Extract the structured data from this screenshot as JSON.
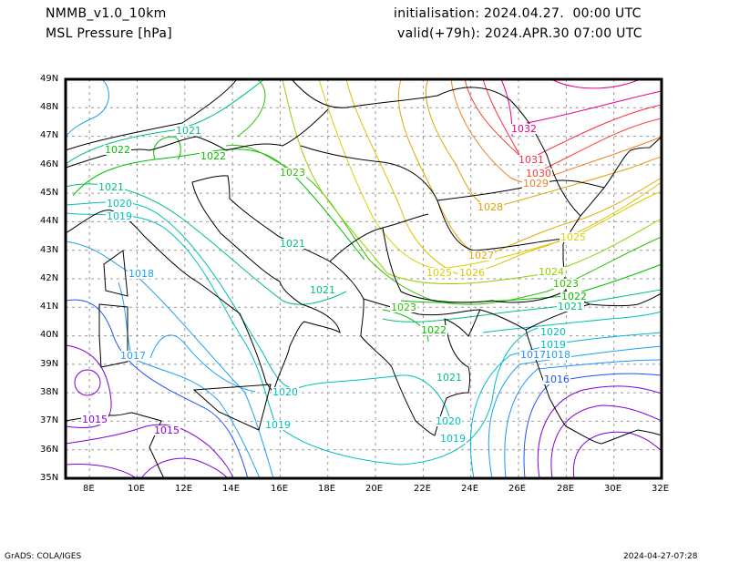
{
  "header": {
    "model": "NMMB_v1.0_10km",
    "field": "MSL Pressure [hPa]",
    "initialisation": "initialisation: 2024.04.27.  00:00 UTC",
    "valid": "valid(+79h): 2024.APR.30 07:00 UTC"
  },
  "footer": {
    "credit": "GrADS: COLA/IGES",
    "timestamp": "2024-04-27-07:28"
  },
  "axes": {
    "lat_labels": [
      "49N",
      "48N",
      "47N",
      "46N",
      "45N",
      "44N",
      "43N",
      "42N",
      "41N",
      "40N",
      "39N",
      "38N",
      "37N",
      "36N",
      "35N"
    ],
    "lon_labels": [
      "8E",
      "10E",
      "12E",
      "14E",
      "16E",
      "18E",
      "20E",
      "22E",
      "24E",
      "26E",
      "28E",
      "30E",
      "32E"
    ],
    "lat_range": [
      35,
      49
    ],
    "lon_range": [
      7,
      32
    ]
  },
  "contour_labels": [
    {
      "text": "1032",
      "color": "#e8008c"
    },
    {
      "text": "1031",
      "color": "#ff2840"
    },
    {
      "text": "1030",
      "color": "#ff4030"
    },
    {
      "text": "1029",
      "color": "#f08020"
    },
    {
      "text": "1028",
      "color": "#e0a000"
    },
    {
      "text": "1027",
      "color": "#e0a800"
    },
    {
      "text": "1026",
      "color": "#d8c800"
    },
    {
      "text": "1025",
      "color": "#d8d000"
    },
    {
      "text": "1025",
      "color": "#d8d000"
    },
    {
      "text": "1024",
      "color": "#90d000"
    },
    {
      "text": "1023",
      "color": "#30c000"
    },
    {
      "text": "1022",
      "color": "#00c000"
    },
    {
      "text": "1021",
      "color": "#00c080"
    },
    {
      "text": "1021",
      "color": "#00c080"
    },
    {
      "text": "1022",
      "color": "#00c000"
    },
    {
      "text": "1022",
      "color": "#00c000"
    },
    {
      "text": "1023",
      "color": "#30c000"
    },
    {
      "text": "1021",
      "color": "#00c080"
    },
    {
      "text": "1020",
      "color": "#00c0b0"
    },
    {
      "text": "1019",
      "color": "#00c0c0"
    },
    {
      "text": "1018",
      "color": "#1ea0f0"
    },
    {
      "text": "1021",
      "color": "#00c080"
    },
    {
      "text": "1021",
      "color": "#00c080"
    },
    {
      "text": "1023",
      "color": "#30c000"
    },
    {
      "text": "1022",
      "color": "#00c000"
    },
    {
      "text": "1021",
      "color": "#00c080"
    },
    {
      "text": "1020",
      "color": "#00c0b0"
    },
    {
      "text": "1019",
      "color": "#00c0c0"
    },
    {
      "text": "1020",
      "color": "#00c0b0"
    },
    {
      "text": "1019",
      "color": "#00b8d8"
    },
    {
      "text": "1018",
      "color": "#1ea0f0"
    },
    {
      "text": "1017",
      "color": "#2090ff"
    },
    {
      "text": "1016",
      "color": "#2050ff"
    },
    {
      "text": "1017",
      "color": "#20a0ff"
    },
    {
      "text": "1015",
      "color": "#8000e0"
    },
    {
      "text": "1015",
      "color": "#8000e0"
    },
    {
      "text": "1020",
      "color": "#00c0b0"
    },
    {
      "text": "1019",
      "color": "#00c0c0"
    }
  ]
}
